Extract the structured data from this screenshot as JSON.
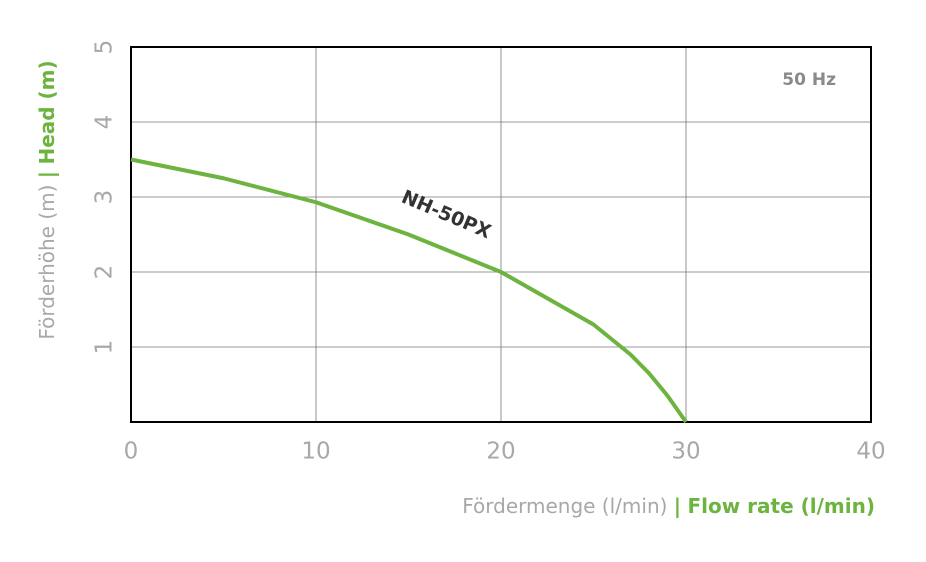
{
  "chart_data": {
    "type": "line",
    "annotation": "50 Hz",
    "xlabel": {
      "de": "Fördermenge (l/min)",
      "sep": "|",
      "en": "Flow rate (l/min)"
    },
    "ylabel": {
      "de": "Förderhöhe (m)",
      "sep": "|",
      "en": "Head (m)"
    },
    "x": [
      0,
      5,
      10,
      15,
      20,
      25,
      27,
      28,
      29,
      30
    ],
    "series": [
      {
        "name": "NH-50PX",
        "color": "#6db33f",
        "values": [
          3.5,
          3.25,
          2.93,
          2.5,
          2.0,
          1.3,
          0.9,
          0.65,
          0.35,
          0
        ]
      }
    ],
    "xlim": [
      0,
      40
    ],
    "xticks": [
      0,
      10,
      20,
      30,
      40
    ],
    "ylim": [
      0,
      5
    ],
    "yticks": [
      1,
      2,
      3,
      4,
      5
    ],
    "grid": true
  }
}
